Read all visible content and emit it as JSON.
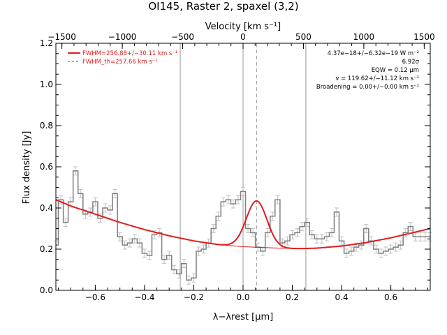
{
  "chart_data": {
    "type": "line",
    "title": "OI145, Raster 2, spaxel (3,2)",
    "xlabel": "λ−λrest [μm]",
    "ylabel": "Flux density [Jy]",
    "top_xlabel": "Velocity [km s⁻¹]",
    "xlim": [
      -0.76,
      0.76
    ],
    "ylim": [
      0.0,
      1.2
    ],
    "top_xlim": [
      -1550,
      1550
    ],
    "x_ticks": [
      "−0.6",
      "−0.4",
      "−0.2",
      "0.0",
      "0.2",
      "0.4",
      "0.6"
    ],
    "x_tick_values": [
      -0.6,
      -0.4,
      -0.2,
      0.0,
      0.2,
      0.4,
      0.6
    ],
    "y_ticks": [
      "0.0",
      "0.2",
      "0.4",
      "0.6",
      "0.8",
      "1.0",
      "1.2"
    ],
    "y_tick_values": [
      0.0,
      0.2,
      0.4,
      0.6,
      0.8,
      1.0,
      1.2
    ],
    "top_ticks": [
      "−1500",
      "−1000",
      "−500",
      "0",
      "500",
      "1000",
      "1500"
    ],
    "top_tick_values": [
      -1500,
      -1000,
      -500,
      0,
      500,
      1000,
      1500
    ],
    "legend": [
      {
        "label": "FWHM=256.88+/−30.11 km s⁻¹",
        "style": "solid"
      },
      {
        "label": "FWHM_th=257.66 km s⁻¹",
        "style": "dashed"
      }
    ],
    "annotations": [
      "4.37e−18+/−6.32e−19 W m⁻²",
      "6.92σ",
      "EQW = 0.12 μm",
      "v = 119.62+/−11.12 km s⁻¹",
      "Broadening = 0.00+/−0.00 km s⁻¹"
    ],
    "spectrum": {
      "x": [
        -0.76,
        -0.74,
        -0.72,
        -0.7,
        -0.68,
        -0.66,
        -0.64,
        -0.62,
        -0.6,
        -0.58,
        -0.56,
        -0.54,
        -0.52,
        -0.5,
        -0.48,
        -0.46,
        -0.44,
        -0.42,
        -0.4,
        -0.38,
        -0.36,
        -0.34,
        -0.32,
        -0.3,
        -0.28,
        -0.26,
        -0.24,
        -0.22,
        -0.2,
        -0.18,
        -0.16,
        -0.14,
        -0.12,
        -0.1,
        -0.08,
        -0.06,
        -0.04,
        -0.02,
        0.0,
        0.02,
        0.04,
        0.06,
        0.08,
        0.1,
        0.12,
        0.14,
        0.16,
        0.18,
        0.2,
        0.22,
        0.24,
        0.26,
        0.28,
        0.3,
        0.32,
        0.34,
        0.36,
        0.38,
        0.4,
        0.42,
        0.44,
        0.46,
        0.48,
        0.5,
        0.52,
        0.54,
        0.56,
        0.58,
        0.6,
        0.62,
        0.64,
        0.66,
        0.68,
        0.7,
        0.72,
        0.74,
        0.76
      ],
      "y": [
        0.22,
        0.44,
        0.33,
        0.43,
        0.58,
        0.47,
        0.37,
        0.38,
        0.43,
        0.35,
        0.4,
        0.39,
        0.47,
        0.26,
        0.22,
        0.23,
        0.25,
        0.23,
        0.18,
        0.17,
        0.27,
        0.28,
        0.15,
        0.17,
        0.1,
        0.08,
        0.13,
        0.05,
        0.06,
        0.19,
        0.2,
        0.23,
        0.3,
        0.36,
        0.43,
        0.44,
        0.42,
        0.44,
        0.48,
        0.3,
        0.28,
        0.21,
        0.19,
        0.28,
        0.36,
        0.44,
        0.23,
        0.24,
        0.27,
        0.28,
        0.31,
        0.33,
        0.27,
        0.25,
        0.25,
        0.26,
        0.28,
        0.38,
        0.24,
        0.18,
        0.19,
        0.21,
        0.22,
        0.3,
        0.24,
        0.2,
        0.18,
        0.19,
        0.2,
        0.21,
        0.22,
        0.28,
        0.31,
        0.26,
        0.26,
        0.26,
        0.26
      ],
      "error": 0.02
    },
    "continuum_fit": {
      "x": [
        -0.76,
        -0.7,
        -0.6,
        -0.5,
        -0.4,
        -0.3,
        -0.2,
        -0.1,
        0.0,
        0.1,
        0.2,
        0.25,
        0.3,
        0.4,
        0.5,
        0.6,
        0.7,
        0.76
      ],
      "y": [
        0.44,
        0.41,
        0.37,
        0.33,
        0.295,
        0.265,
        0.24,
        0.222,
        0.212,
        0.207,
        0.203,
        0.203,
        0.205,
        0.215,
        0.232,
        0.255,
        0.283,
        0.3
      ]
    },
    "line_fit": {
      "center": 0.055,
      "sigma": 0.042,
      "amplitude": 0.225
    },
    "vlines_solid": [
      -0.255,
      0.0,
      0.255
    ],
    "vline_dashed": 0.055,
    "colors": {
      "fit": "#e41a1c",
      "spectrum": "#7f7f7f",
      "errorbars": "#bfbfbf",
      "vlines": "#9a9a9a",
      "dashed": "#9a9a9a",
      "axes": "#000000"
    }
  }
}
